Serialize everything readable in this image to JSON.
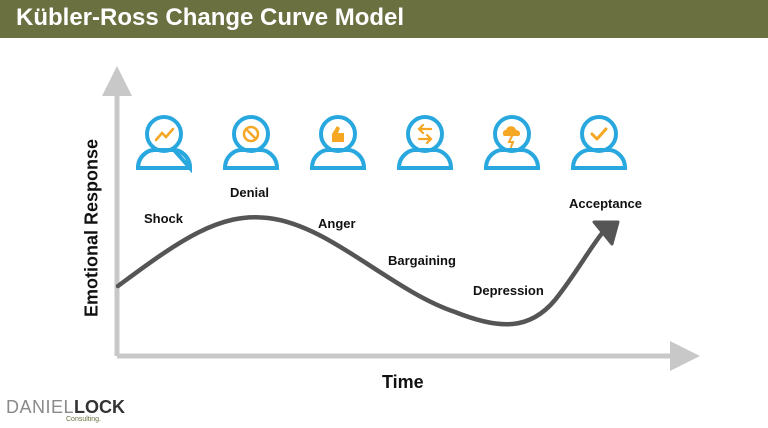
{
  "header": {
    "title": "Kübler-Ross Change Curve Model"
  },
  "axes": {
    "x_label": "Time",
    "y_label": "Emotional Response"
  },
  "stages": [
    {
      "label": "Shock",
      "icon": "trend-chart-icon"
    },
    {
      "label": "Denial",
      "icon": "prohibited-icon"
    },
    {
      "label": "Anger",
      "icon": "angry-hand-icon"
    },
    {
      "label": "Bargaining",
      "icon": "exchange-arrows-icon"
    },
    {
      "label": "Depression",
      "icon": "storm-cloud-icon"
    },
    {
      "label": "Acceptance",
      "icon": "checkmark-icon"
    }
  ],
  "logo": {
    "part1": "DANIEL",
    "part2": "LOCK",
    "sub": "Consulting."
  },
  "colors": {
    "header": "#6b7040",
    "icon_stroke": "#29a8e0",
    "icon_accent": "#f5a623",
    "curve": "#555555",
    "axis": "#c8c8c8"
  }
}
